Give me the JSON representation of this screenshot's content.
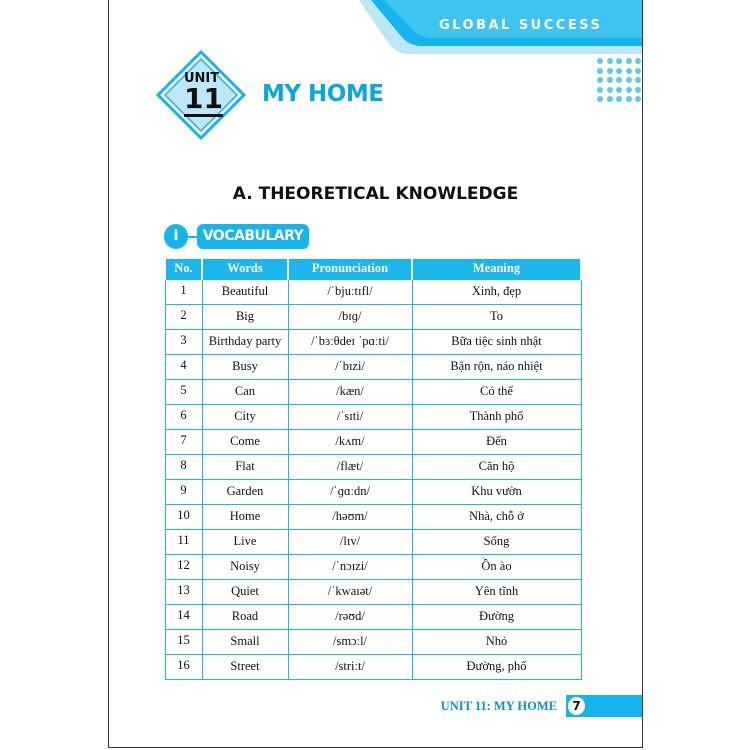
{
  "header": {
    "brand": "GLOBAL SUCCESS",
    "unit_label": "UNIT",
    "unit_number": "11",
    "unit_title": "MY HOME"
  },
  "section": {
    "title": "A. THEORETICAL KNOWLEDGE",
    "part_number": "I",
    "part_title": "VOCABULARY"
  },
  "table": {
    "headers": [
      "No.",
      "Words",
      "Pronunciation",
      "Meaning"
    ],
    "rows": [
      [
        "1",
        "Beautiful",
        "/ˈbjuːtɪfl/",
        "Xinh, đẹp"
      ],
      [
        "2",
        "Big",
        "/bɪɡ/",
        "To"
      ],
      [
        "3",
        "Birthday party",
        "/ˈbɜːθdeɪ ˈpɑːti/",
        "Bữa tiệc sinh nhật"
      ],
      [
        "4",
        "Busy",
        "/ˈbɪzi/",
        "Bận rộn, náo nhiệt"
      ],
      [
        "5",
        "Can",
        "/kæn/",
        "Có thể"
      ],
      [
        "6",
        "City",
        "/ˈsɪti/",
        "Thành phố"
      ],
      [
        "7",
        "Come",
        "/kʌm/",
        "Đến"
      ],
      [
        "8",
        "Flat",
        "/flæt/",
        "Căn hộ"
      ],
      [
        "9",
        "Garden",
        "/ˈɡɑːdn/",
        "Khu vườn"
      ],
      [
        "10",
        "Home",
        "/həʊm/",
        "Nhà, chỗ ở"
      ],
      [
        "11",
        "Live",
        "/lɪv/",
        "Sống"
      ],
      [
        "12",
        "Noisy",
        "/ˈnɔɪzi/",
        "Ồn ào"
      ],
      [
        "13",
        "Quiet",
        "/ˈkwaɪət/",
        "Yên tĩnh"
      ],
      [
        "14",
        "Road",
        "/rəʊd/",
        "Đường"
      ],
      [
        "15",
        "Small",
        "/smɔːl/",
        "Nhỏ"
      ],
      [
        "16",
        "Street",
        "/striːt/",
        "Đường, phố"
      ]
    ]
  },
  "footer": {
    "text": "UNIT 11: MY HOME",
    "page": "7"
  },
  "colors": {
    "accent": "#16b4ec",
    "light": "#bde6f7"
  }
}
